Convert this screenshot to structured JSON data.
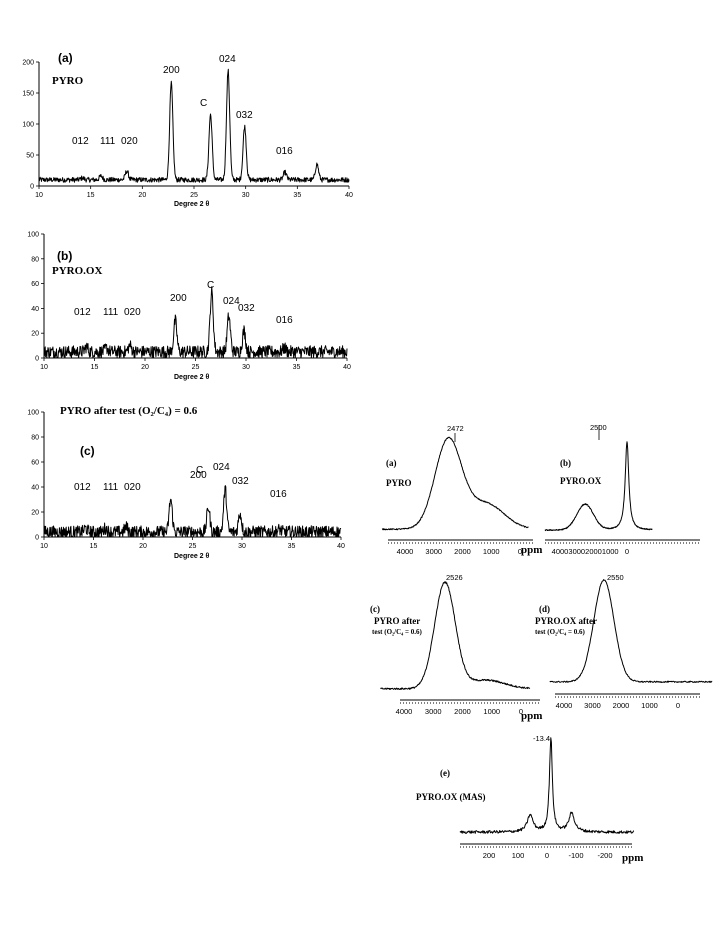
{
  "xrd": [
    {
      "panel": "(a)",
      "sample": "PYRO",
      "xlabel": "Degree 2 θ",
      "yticks": [
        "0",
        "50",
        "100",
        "150",
        "200"
      ],
      "ymax": 200,
      "xticks": [
        "10",
        "15",
        "20",
        "25",
        "30",
        "35",
        "40"
      ],
      "peaks": [
        {
          "label": "012",
          "x": 14.2,
          "y": 13
        },
        {
          "label": "111",
          "x": 16.0,
          "y": 16
        },
        {
          "label": "020",
          "x": 18.5,
          "y": 24
        },
        {
          "label": "200",
          "x": 22.8,
          "y": 165
        },
        {
          "label": "C",
          "x": 26.6,
          "y": 115
        },
        {
          "label": "024",
          "x": 28.3,
          "y": 186
        },
        {
          "label": "032",
          "x": 29.9,
          "y": 96
        },
        {
          "label": "016",
          "x": 33.8,
          "y": 22
        },
        {
          "label": "",
          "x": 36.9,
          "y": 35
        }
      ],
      "baseline": 10,
      "noise": 4
    },
    {
      "panel": "(b)",
      "sample": "PYRO.OX",
      "xlabel": "Degree 2 θ",
      "yticks": [
        "0",
        "20",
        "40",
        "60",
        "80",
        "100"
      ],
      "ymax": 100,
      "xticks": [
        "10",
        "15",
        "20",
        "25",
        "30",
        "35",
        "40"
      ],
      "peaks": [
        {
          "label": "012",
          "x": 14.2,
          "y": 9
        },
        {
          "label": "111",
          "x": 16.2,
          "y": 8
        },
        {
          "label": "020",
          "x": 18.5,
          "y": 10
        },
        {
          "label": "200",
          "x": 23.0,
          "y": 30
        },
        {
          "label": "C",
          "x": 26.6,
          "y": 53
        },
        {
          "label": "024",
          "x": 28.3,
          "y": 34
        },
        {
          "label": "032",
          "x": 29.8,
          "y": 22
        },
        {
          "label": "016",
          "x": 33.8,
          "y": 8
        }
      ],
      "baseline": 5,
      "noise": 5
    },
    {
      "panel": "(c)",
      "sample": "PYRO after test (O₂/C₄) = 0.6",
      "xlabel": "Degree 2 θ",
      "yticks": [
        "0",
        "20",
        "40",
        "60",
        "80",
        "100"
      ],
      "ymax": 100,
      "xticks": [
        "10",
        "15",
        "20",
        "25",
        "30",
        "35",
        "40"
      ],
      "peaks": [
        {
          "label": "012",
          "x": 14.2,
          "y": 7
        },
        {
          "label": "111",
          "x": 16.2,
          "y": 7
        },
        {
          "label": "020",
          "x": 18.3,
          "y": 8
        },
        {
          "label": "200",
          "x": 22.8,
          "y": 30
        },
        {
          "label": "C",
          "x": 26.6,
          "y": 24
        },
        {
          "label": "024",
          "x": 28.3,
          "y": 38
        },
        {
          "label": "032",
          "x": 29.8,
          "y": 19
        },
        {
          "label": "016",
          "x": 33.8,
          "y": 6
        }
      ],
      "baseline": 4,
      "noise": 5
    }
  ],
  "nmr": [
    {
      "panel": "(a)",
      "label": "PYRO",
      "label2": "",
      "top_label": "2472",
      "xticks": [
        "4000",
        "3000",
        "2000",
        "1000",
        "0"
      ],
      "unit": "ppm"
    },
    {
      "panel": "(b)",
      "label": "PYRO.OX",
      "label2": "",
      "top_label": "2500",
      "xticks": [
        "4000",
        "3000",
        "2000",
        "1000",
        "0"
      ],
      "unit": ""
    },
    {
      "panel": "(c)",
      "label": "PYRO after",
      "label2": "test (O₂/C₄ = 0.6)",
      "top_label": "2526",
      "xticks": [
        "4000",
        "3000",
        "2000",
        "1000",
        "0"
      ],
      "unit": "ppm"
    },
    {
      "panel": "(d)",
      "label": "PYRO.OX after",
      "label2": "test (O₂/C₄ = 0.6)",
      "top_label": "2550",
      "xticks": [
        "4000",
        "3000",
        "2000",
        "1000",
        "0"
      ],
      "unit": ""
    },
    {
      "panel": "(e)",
      "label": "PYRO.OX (MAS)",
      "label2": "",
      "top_label": "-13.4",
      "xticks": [
        "200",
        "100",
        "0",
        "-100",
        "-200"
      ],
      "unit": "ppm"
    }
  ]
}
